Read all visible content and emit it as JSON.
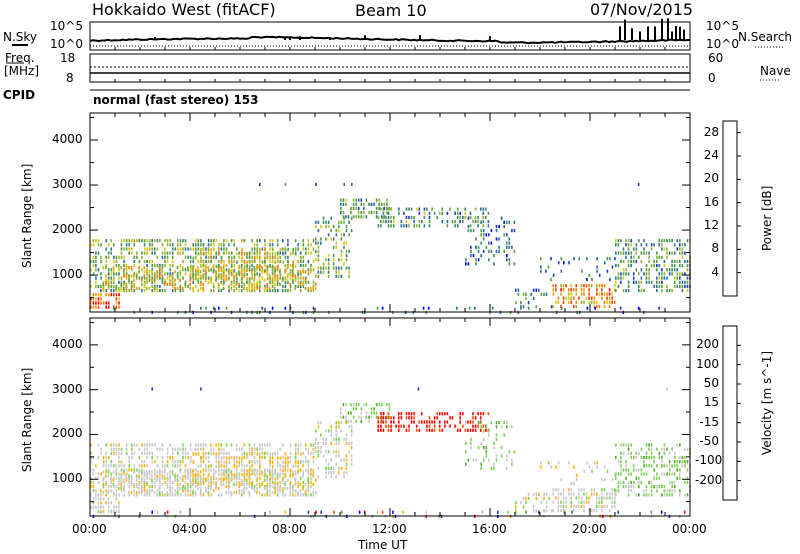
{
  "header": {
    "title": "Hokkaido West (fitACF)",
    "beam": "Beam 10",
    "date": "07/Nov/2015"
  },
  "top_panel": {
    "nsky_label": "N.Sky",
    "nsearch_label": "N.Search",
    "n_ticks_left": [
      "10^5",
      "10^0"
    ],
    "n_ticks_right": [
      "10^5",
      "10^0"
    ],
    "freq_label": "Freq.",
    "freq_unit": "[MHz]",
    "freq_ticks": [
      "18",
      "8"
    ],
    "nave_ticks": [
      "60",
      "0"
    ],
    "nave_label": "Nave",
    "cpid_label": "CPID",
    "cpid_text": "normal (fast stereo) 153"
  },
  "colors": {
    "power": [
      "#0000ff",
      "#1e3cbe",
      "#2d6e9b",
      "#3c8c64",
      "#55a03c",
      "#8cb432",
      "#d2c814",
      "#f0a000",
      "#ff7800",
      "#ff3c00",
      "#ff0000"
    ],
    "velocity": [
      "#0000ff",
      "#1e3cbe",
      "#2e7d5a",
      "#55aa28",
      "#78d250",
      "#c8c8c8",
      "#b4b4b4",
      "#ffb400",
      "#ff8c00",
      "#ff5000",
      "#ff0000"
    ]
  },
  "chart_data": [
    {
      "type": "heatmap",
      "title": "",
      "ylabel": "Slant Range [km]",
      "xlabel": "",
      "x_ticks": [
        "00:00",
        "04:00",
        "08:00",
        "12:00",
        "16:00",
        "20:00",
        "00:00"
      ],
      "xlim_hours": [
        0,
        24
      ],
      "y_ticks": [
        1000,
        2000,
        3000,
        4000
      ],
      "ylim": [
        180,
        4600
      ],
      "colorbar": {
        "label": "Power [dB]",
        "ticks": [
          4,
          8,
          12,
          16,
          20,
          24,
          28
        ],
        "range": [
          0,
          30
        ]
      }
    },
    {
      "type": "heatmap",
      "title": "",
      "ylabel": "Slant Range [km]",
      "xlabel": "Time UT",
      "x_ticks": [
        "00:00",
        "04:00",
        "08:00",
        "12:00",
        "16:00",
        "20:00",
        "00:00"
      ],
      "xlim_hours": [
        0,
        24
      ],
      "y_ticks": [
        1000,
        2000,
        3000,
        4000
      ],
      "ylim": [
        180,
        4600
      ],
      "colorbar": {
        "label": "Velocity [m s^-1]",
        "ticks": [
          200,
          100,
          50,
          15,
          -15,
          -50,
          -100,
          -200
        ],
        "range": [
          -300,
          300
        ]
      }
    }
  ]
}
